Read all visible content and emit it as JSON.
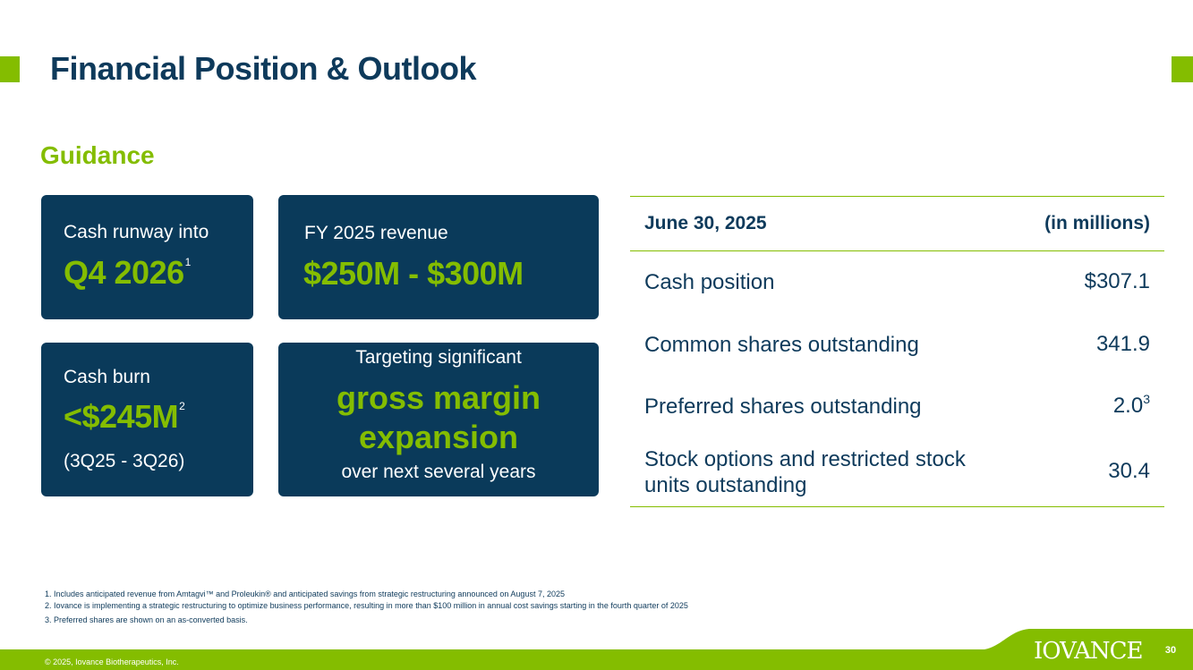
{
  "title": "Financial Position & Outlook",
  "section_heading": "Guidance",
  "cards": {
    "runway": {
      "label": "Cash runway into",
      "value": "Q4 2026",
      "footnote": "1"
    },
    "revenue": {
      "label": "FY 2025 revenue",
      "value": "$250M - $300M"
    },
    "burn": {
      "label": "Cash burn",
      "value": "<$245M",
      "footnote": "2",
      "period": "(3Q25 - 3Q26)"
    },
    "margin": {
      "line1": "Targeting significant",
      "big1": "gross margin",
      "big2": "expansion",
      "line3": "over next several years"
    }
  },
  "table": {
    "header_left": "June 30, 2025",
    "header_right": "(in millions)",
    "rows": [
      {
        "label": "Cash position",
        "value": "$307.1"
      },
      {
        "label": "Common shares outstanding",
        "value": "341.9"
      },
      {
        "label": "Preferred shares outstanding",
        "value": "2.0",
        "footnote": "3"
      },
      {
        "label": "Stock options and restricted stock units outstanding",
        "value": "30.4"
      }
    ]
  },
  "footnotes": [
    "1.  Includes anticipated revenue from Amtagvi™ and Proleukin®  and anticipated savings from strategic restructuring announced on August 7, 2025",
    "2.  Iovance is implementing a strategic restructuring to optimize business performance, resulting in more than $100 million in annual cost savings starting in the fourth quarter of 2025",
    "3.  Preferred shares are shown on an as-converted basis."
  ],
  "footer": {
    "copyright": "© 2025, Iovance Biotherapeutics, Inc.",
    "logo": "IOVANCE",
    "page_number": "30"
  },
  "colors": {
    "navy": "#0a3a5a",
    "green": "#84bd00"
  }
}
